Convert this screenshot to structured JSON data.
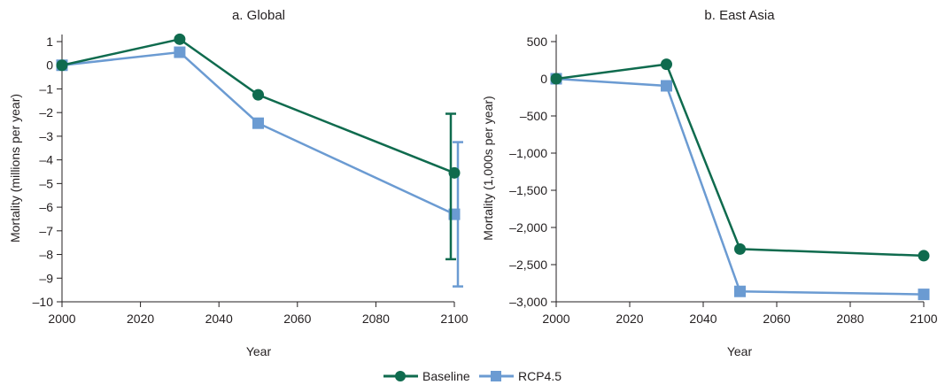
{
  "colors": {
    "baseline": "#0f6b4e",
    "rcp45": "#6b9bd2",
    "axis": "#231f20"
  },
  "chart_data": [
    {
      "type": "line",
      "title": "a. Global",
      "xlabel": "Year",
      "ylabel": "Mortality (millions per year)",
      "xlim": [
        2000,
        2100
      ],
      "ylim": [
        -10,
        1
      ],
      "xticks": [
        2000,
        2020,
        2040,
        2060,
        2080,
        2100
      ],
      "xtick_labels": [
        "2000",
        "2020",
        "2040",
        "2060",
        "2080",
        "2100"
      ],
      "yticks": [
        1,
        0,
        -1,
        -2,
        -3,
        -4,
        -5,
        -6,
        -7,
        -8,
        -9,
        -10
      ],
      "ytick_labels": [
        "1",
        "0",
        "–1",
        "–2",
        "–3",
        "–4",
        "–5",
        "–6",
        "–7",
        "–8",
        "–9",
        "–10"
      ],
      "series": [
        {
          "name": "Baseline",
          "marker": "circle",
          "x": [
            2000,
            2030,
            2050,
            2100
          ],
          "y": [
            0,
            1.1,
            -1.25,
            -4.55
          ],
          "error_bar": {
            "x": 2100,
            "low": -8.2,
            "high": -2.05
          }
        },
        {
          "name": "RCP4.5",
          "marker": "square",
          "x": [
            2000,
            2030,
            2050,
            2100
          ],
          "y": [
            0,
            0.55,
            -2.45,
            -6.3
          ],
          "error_bar": {
            "x": 2100,
            "low": -9.35,
            "high": -3.25
          }
        }
      ]
    },
    {
      "type": "line",
      "title": "b. East Asia",
      "xlabel": "Year",
      "ylabel": "Mortality (1,000s per year)",
      "xlim": [
        2000,
        2100
      ],
      "ylim": [
        -3000,
        500
      ],
      "xticks": [
        2000,
        2020,
        2040,
        2060,
        2080,
        2100
      ],
      "xtick_labels": [
        "2000",
        "2020",
        "2040",
        "2060",
        "2080",
        "2100"
      ],
      "yticks": [
        500,
        0,
        -500,
        -1000,
        -1500,
        -2000,
        -2500,
        -3000
      ],
      "ytick_labels": [
        "500",
        "0",
        "–500",
        "–1,000",
        "–1,500",
        "–2,000",
        "–2,500",
        "–3,000"
      ],
      "series": [
        {
          "name": "Baseline",
          "marker": "circle",
          "x": [
            2000,
            2030,
            2050,
            2100
          ],
          "y": [
            0,
            195,
            -2290,
            -2380
          ]
        },
        {
          "name": "RCP4.5",
          "marker": "square",
          "x": [
            2000,
            2030,
            2050,
            2100
          ],
          "y": [
            0,
            -95,
            -2860,
            -2900
          ]
        }
      ]
    }
  ],
  "legend": {
    "placement": "bottom-center",
    "items": [
      {
        "label": "Baseline",
        "marker": "circle"
      },
      {
        "label": "RCP4.5",
        "marker": "square"
      }
    ]
  }
}
